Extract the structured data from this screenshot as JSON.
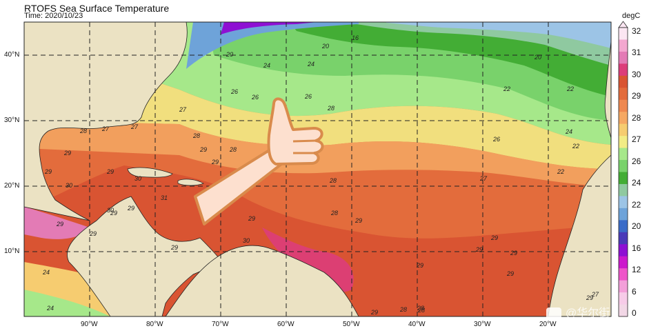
{
  "title": "RTOFS Sea Surface Temperature",
  "time_label": "Time: 2020/10/23",
  "unit": "degC",
  "lat_labels": [
    "40°N",
    "30°N",
    "20°N",
    "10°N"
  ],
  "lon_labels": [
    "90°W",
    "80°W",
    "70°W",
    "60°W",
    "50°W",
    "40°W",
    "30°W",
    "20°W"
  ],
  "colorbar": {
    "ticks": [
      "32",
      "31",
      "30",
      "29",
      "28",
      "27",
      "26",
      "24",
      "22",
      "20",
      "16",
      "12",
      "6",
      "0"
    ],
    "colors": [
      "#fbe6f2",
      "#f3a7cf",
      "#e37bb5",
      "#dc3d7a",
      "#d95432",
      "#e36c3c",
      "#ee8850",
      "#f5a863",
      "#f6cc70",
      "#f2ec85",
      "#a6e88a",
      "#79d26b",
      "#43ad35",
      "#8fc9a0",
      "#9cc4e6",
      "#6ea3d9",
      "#3b6cc8",
      "#4a3ab8",
      "#8e10d3",
      "#cc19cc",
      "#ee55c9",
      "#f39fd9",
      "#f7cbe8",
      "#f2d7e6"
    ]
  },
  "contour_labels": [
    "20",
    "16",
    "20",
    "20",
    "22",
    "22",
    "24",
    "24",
    "26",
    "27",
    "26",
    "26",
    "28",
    "27",
    "27",
    "28",
    "28",
    "29",
    "28",
    "29",
    "29",
    "29",
    "30",
    "29",
    "30",
    "31",
    "29",
    "29",
    "30",
    "30",
    "28",
    "29",
    "29",
    "28",
    "29",
    "29",
    "29",
    "29",
    "28",
    "29",
    "27",
    "29",
    "24",
    "28",
    "28",
    "29",
    "29",
    "29",
    "29",
    "27",
    "24",
    "22",
    "22",
    "26",
    "24"
  ],
  "watermark": "@华尔街"
}
